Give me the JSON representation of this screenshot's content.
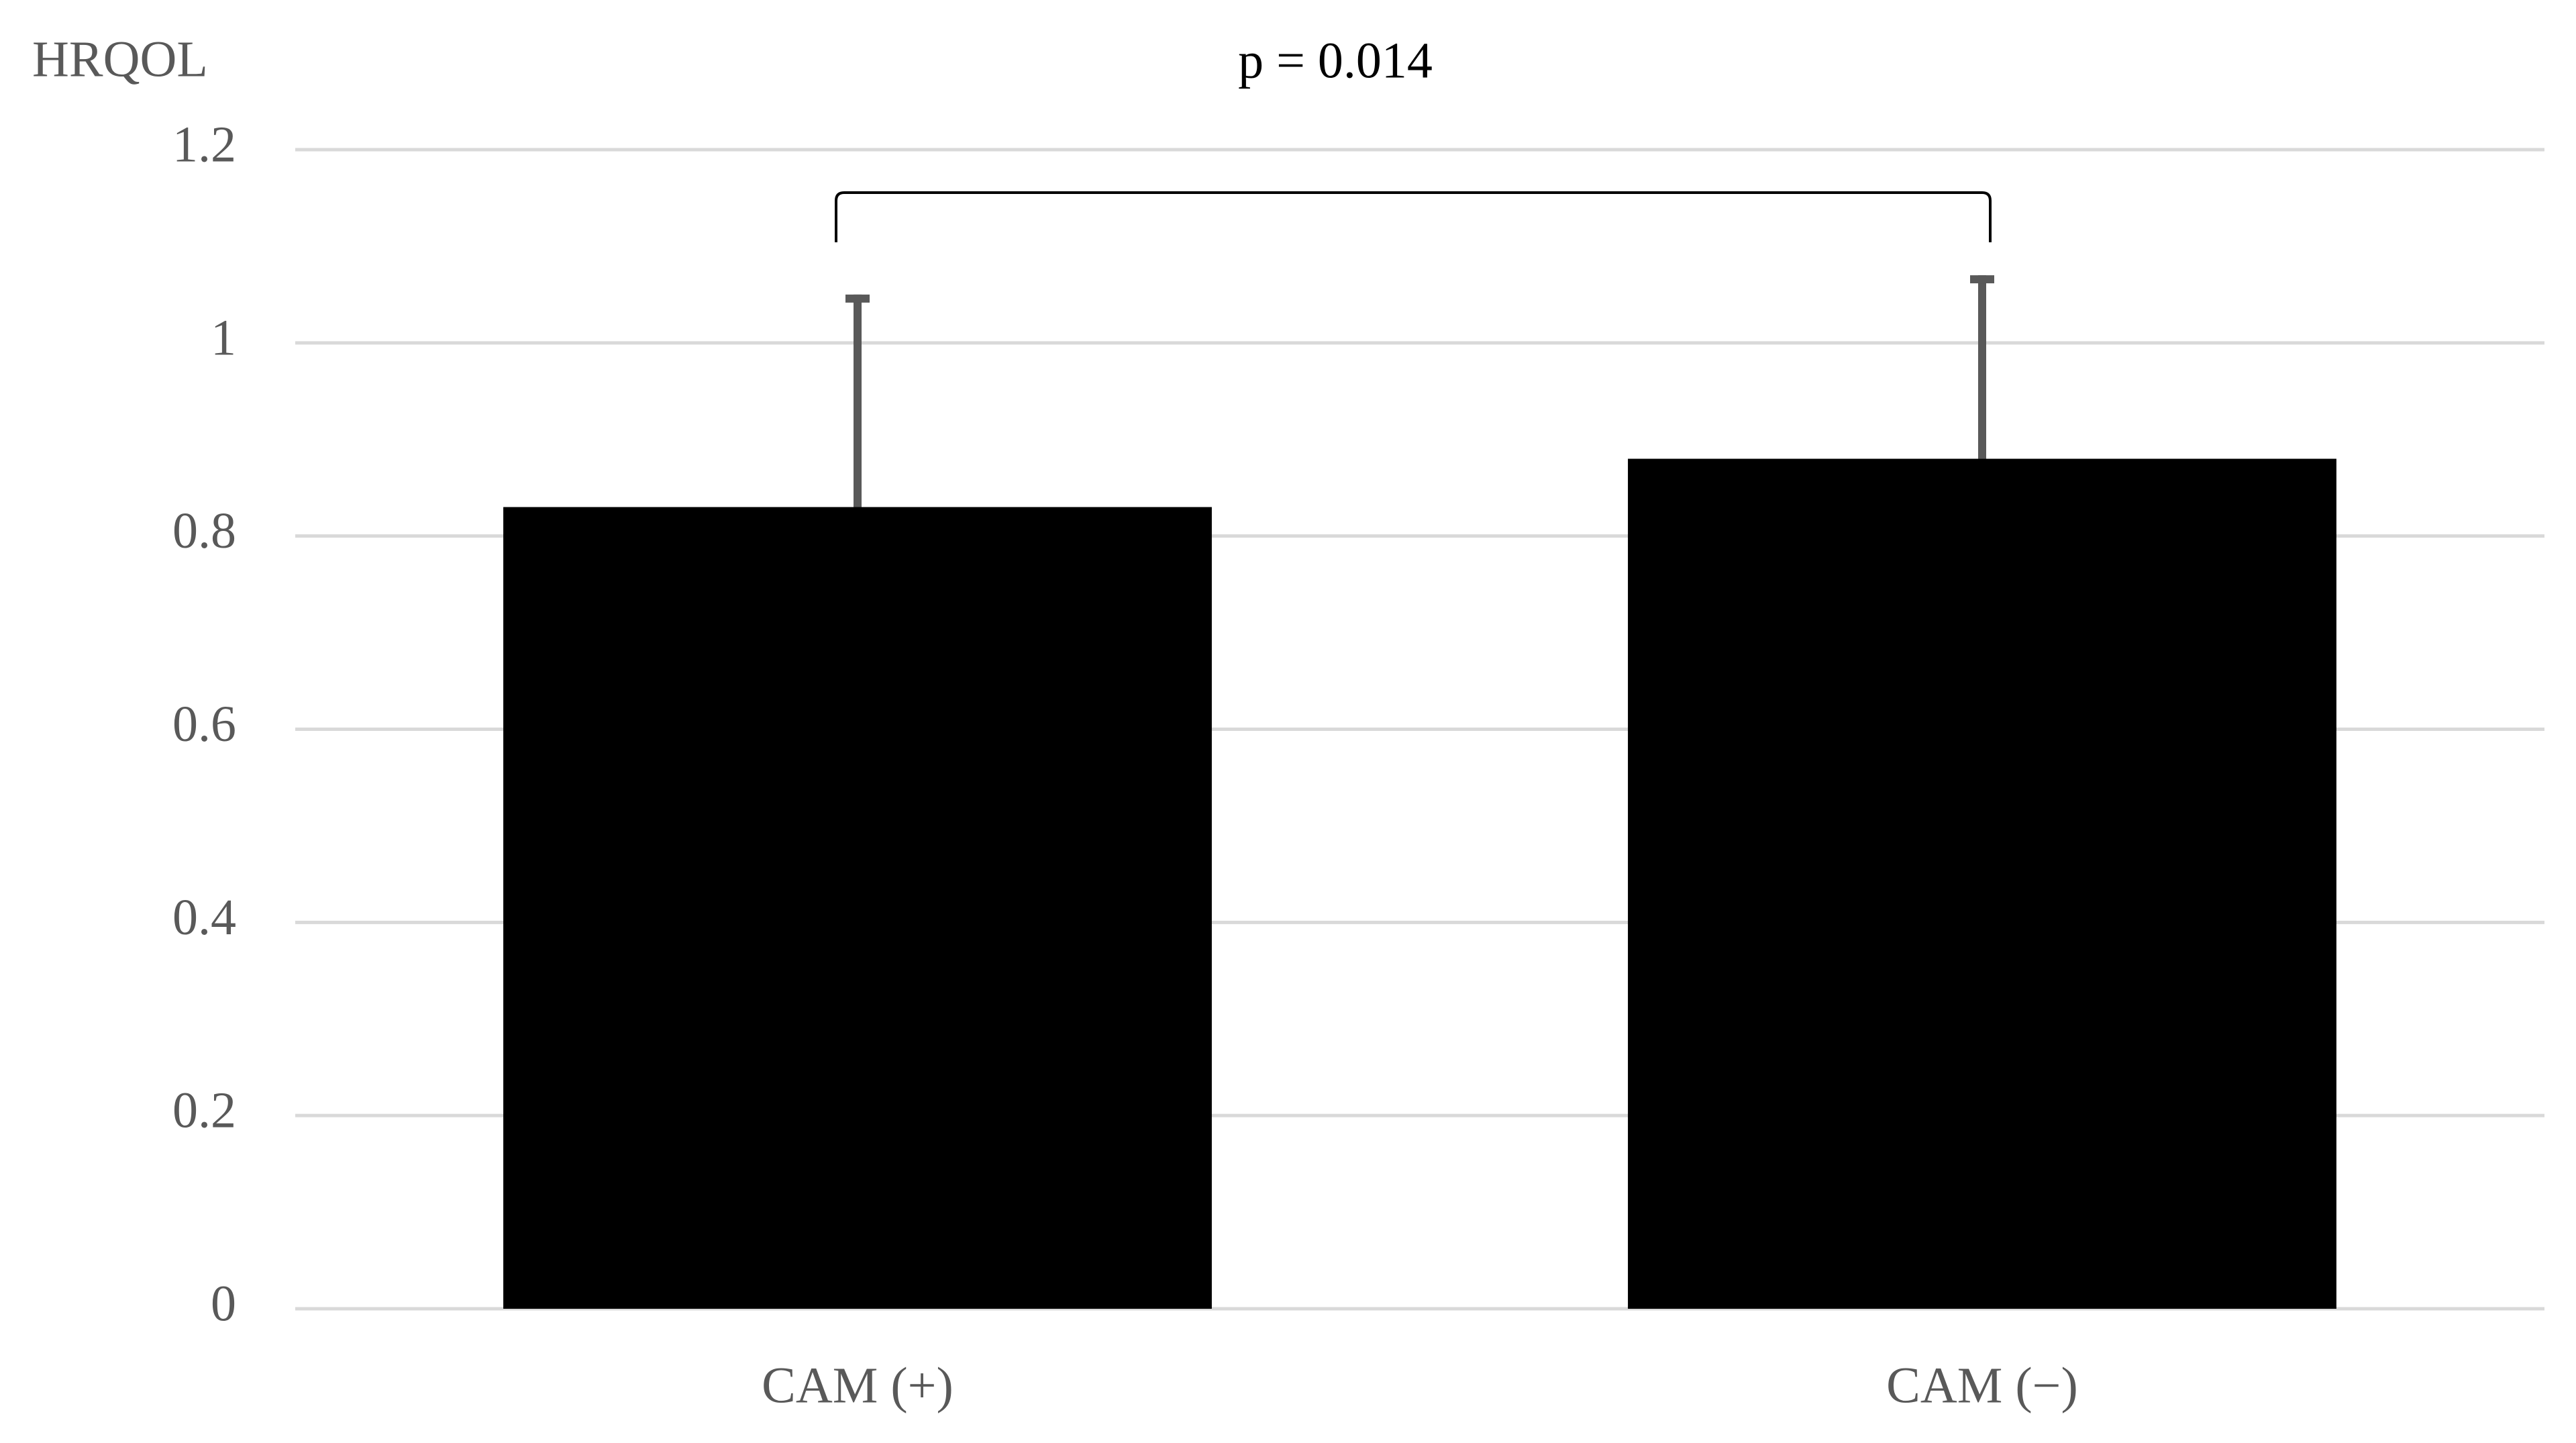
{
  "chart_data": {
    "type": "bar",
    "y_label": "HRQOL",
    "annotation": "p = 0.014",
    "categories": [
      "CAM (+)",
      "CAM (−)"
    ],
    "values": [
      0.83,
      0.88
    ],
    "errors": [
      0.22,
      0.19
    ],
    "color": "#000000",
    "error_color": "#595959",
    "ylim": [
      0,
      1.2
    ],
    "yticks": [
      0,
      0.2,
      0.4,
      0.6,
      0.8,
      1,
      1.2
    ],
    "grid": true
  }
}
